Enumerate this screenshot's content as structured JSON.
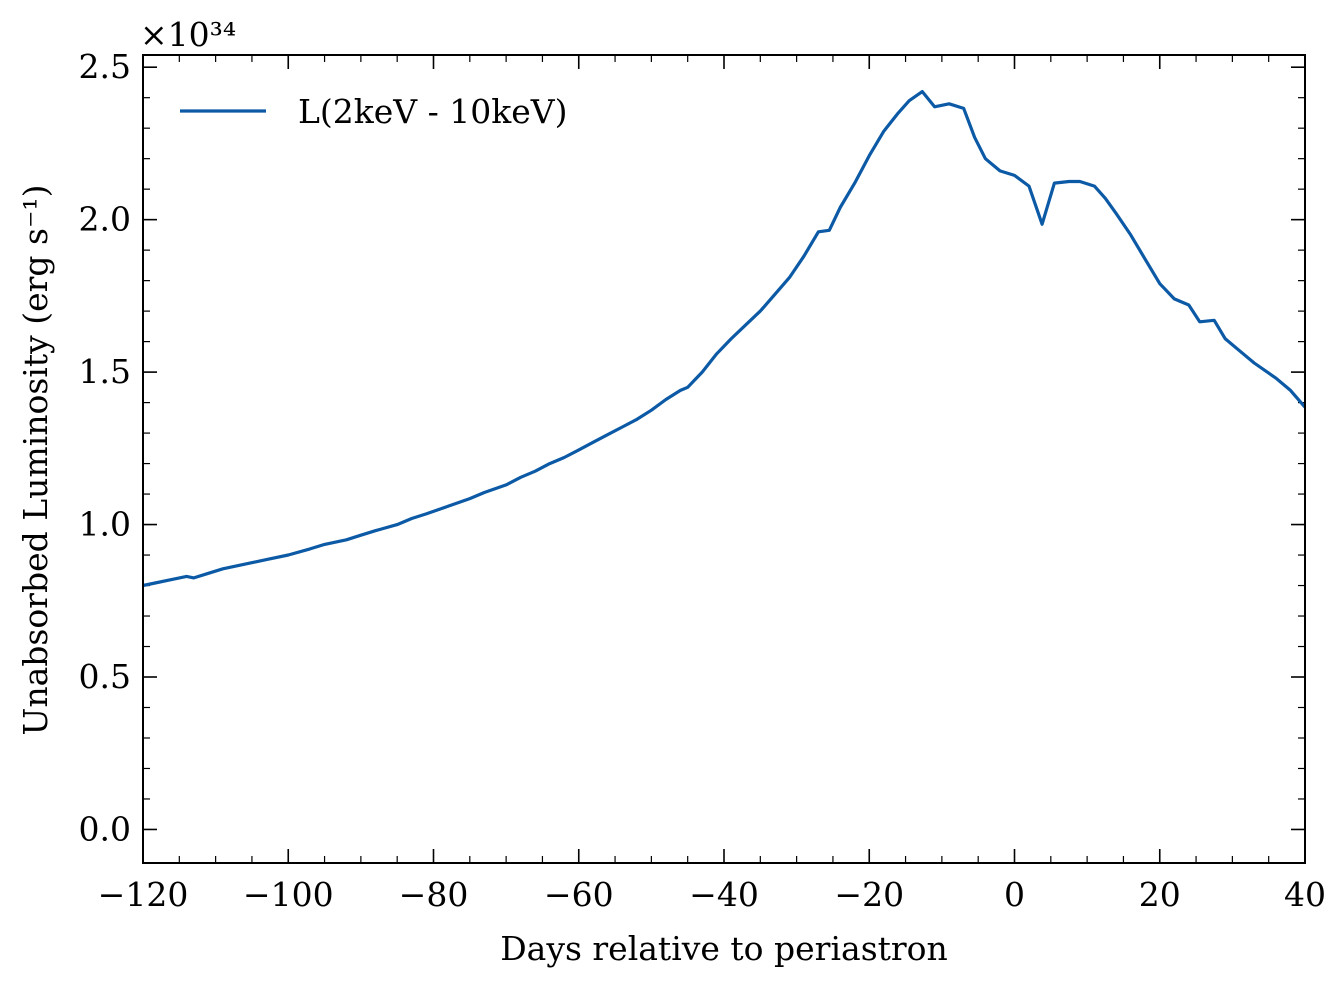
{
  "chart_data": {
    "type": "line",
    "xlabel": "Days relative to periastron",
    "ylabel": "Unabsorbed Luminosity (erg s⁻¹)",
    "y_offset_label": "×10³⁴",
    "xlim": [
      -120,
      40
    ],
    "ylim": [
      -0.11,
      2.54
    ],
    "xticks": [
      -120,
      -100,
      -80,
      -60,
      -40,
      -20,
      0,
      20,
      40
    ],
    "xtick_labels": [
      "−120",
      "−100",
      "−80",
      "−60",
      "−40",
      "−20",
      "0",
      "20",
      "40"
    ],
    "yticks": [
      0.0,
      0.5,
      1.0,
      1.5,
      2.0,
      2.5
    ],
    "ytick_labels": [
      "0.0",
      "0.5",
      "1.0",
      "1.5",
      "2.0",
      "2.5"
    ],
    "grid": false,
    "legend_position": "top-left",
    "series": [
      {
        "name": "L(2keV - 10keV)",
        "color": "#0c5aa6",
        "x": [
          -120,
          -118,
          -116,
          -114,
          -113,
          -111,
          -109,
          -106,
          -103,
          -100,
          -97,
          -95,
          -92,
          -90,
          -88,
          -85,
          -83,
          -81,
          -78,
          -75,
          -73,
          -70,
          -68,
          -66,
          -64,
          -62,
          -60,
          -58,
          -56,
          -54,
          -52,
          -50,
          -48,
          -46,
          -45,
          -43,
          -41,
          -39,
          -37,
          -35,
          -33,
          -31,
          -29,
          -27,
          -25.5,
          -24,
          -22,
          -20,
          -18,
          -16,
          -14.5,
          -12.7,
          -11,
          -9,
          -7,
          -5.5,
          -4,
          -2,
          0,
          2,
          3.8,
          5.5,
          7.5,
          9,
          11,
          12.5,
          14,
          16,
          18,
          20,
          22,
          24,
          25.5,
          27.5,
          29,
          31,
          33,
          36,
          38,
          40
        ],
        "y": [
          0.8,
          0.81,
          0.82,
          0.83,
          0.825,
          0.84,
          0.855,
          0.87,
          0.885,
          0.9,
          0.92,
          0.935,
          0.95,
          0.965,
          0.98,
          1.0,
          1.02,
          1.035,
          1.06,
          1.085,
          1.105,
          1.13,
          1.155,
          1.175,
          1.2,
          1.22,
          1.245,
          1.27,
          1.295,
          1.32,
          1.345,
          1.375,
          1.41,
          1.44,
          1.45,
          1.5,
          1.56,
          1.61,
          1.655,
          1.7,
          1.755,
          1.81,
          1.88,
          1.96,
          1.965,
          2.04,
          2.12,
          2.21,
          2.29,
          2.35,
          2.39,
          2.42,
          2.37,
          2.38,
          2.365,
          2.27,
          2.2,
          2.16,
          2.145,
          2.11,
          1.985,
          2.12,
          2.125,
          2.125,
          2.11,
          2.07,
          2.02,
          1.95,
          1.87,
          1.79,
          1.74,
          1.72,
          1.665,
          1.67,
          1.61,
          1.57,
          1.53,
          1.48,
          1.44,
          1.385
        ]
      }
    ]
  }
}
